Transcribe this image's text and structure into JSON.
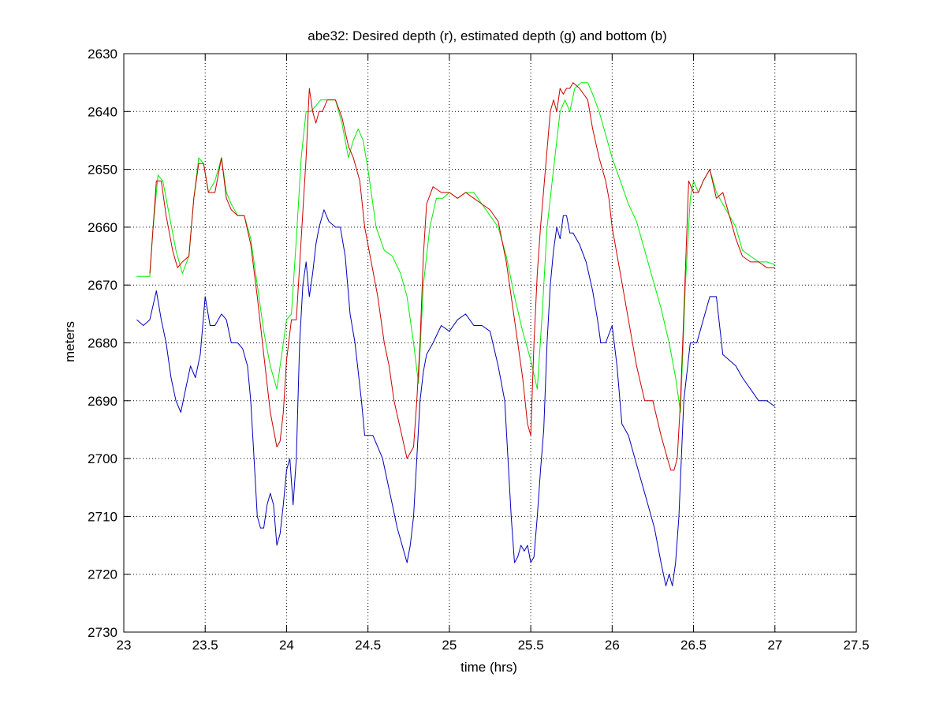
{
  "chart_data": {
    "type": "line",
    "title": "abe32: Desired depth (r), estimated depth (g) and bottom (b)",
    "xlabel": "time (hrs)",
    "ylabel": "meters",
    "xlim": [
      23,
      27.5
    ],
    "ylim": [
      2630,
      2730
    ],
    "y_reversed": true,
    "xticks": [
      "23",
      "23.5",
      "24",
      "24.5",
      "25",
      "25.5",
      "26",
      "26.5",
      "27",
      "27.5"
    ],
    "yticks": [
      "2630",
      "2640",
      "2650",
      "2660",
      "2670",
      "2680",
      "2690",
      "2700",
      "2710",
      "2720",
      "2730"
    ],
    "grid": true,
    "series": [
      {
        "color": "#00ee00",
        "x": [
          23.08,
          23.16,
          23.18,
          23.21,
          23.24,
          23.28,
          23.32,
          23.36,
          23.4,
          23.43,
          23.46,
          23.49,
          23.52,
          23.56,
          23.6,
          23.63,
          23.66,
          23.7,
          23.74,
          23.78,
          23.82,
          23.86,
          23.9,
          23.94,
          23.97,
          24.0,
          24.03,
          24.06,
          24.09,
          24.12,
          24.15,
          24.18,
          24.21,
          24.25,
          24.3,
          24.34,
          24.38,
          24.41,
          24.44,
          24.47,
          24.5,
          24.55,
          24.6,
          24.65,
          24.7,
          24.74,
          24.78,
          24.81,
          24.84,
          24.88,
          24.92,
          24.96,
          25.0,
          25.05,
          25.1,
          25.15,
          25.2,
          25.25,
          25.3,
          25.35,
          25.4,
          25.45,
          25.5,
          25.54,
          25.57,
          25.6,
          25.64,
          25.68,
          25.71,
          25.74,
          25.77,
          25.81,
          25.85,
          25.88,
          25.92,
          25.96,
          26.0,
          26.05,
          26.1,
          26.15,
          26.2,
          26.25,
          26.3,
          26.35,
          26.39,
          26.42,
          26.45,
          26.48,
          26.5,
          26.53,
          26.56,
          26.6,
          26.64,
          26.68,
          26.72,
          26.76,
          26.8,
          26.85,
          26.9,
          26.95,
          27.0
        ],
        "y": [
          2668.5,
          2668.5,
          2660,
          2651,
          2652,
          2658,
          2664,
          2668,
          2665,
          2655,
          2648,
          2649,
          2654,
          2652,
          2648,
          2654,
          2656,
          2658,
          2658,
          2662,
          2670,
          2678,
          2684,
          2688,
          2682,
          2676,
          2675,
          2662,
          2648,
          2640,
          2640,
          2639,
          2638,
          2638,
          2638,
          2642,
          2648,
          2645,
          2643,
          2645,
          2650,
          2660,
          2664,
          2665,
          2668,
          2672,
          2680,
          2687,
          2670,
          2660,
          2655,
          2655,
          2654,
          2655,
          2654,
          2654,
          2656,
          2658,
          2660,
          2665,
          2672,
          2678,
          2683,
          2688,
          2675,
          2660,
          2650,
          2640,
          2638,
          2640,
          2636,
          2635,
          2635,
          2637,
          2640,
          2644,
          2648,
          2652,
          2656,
          2659,
          2664,
          2669,
          2674,
          2680,
          2686,
          2692,
          2670,
          2655,
          2652,
          2654,
          2652,
          2650,
          2654,
          2656,
          2658,
          2660,
          2664,
          2665,
          2666,
          2666,
          2666.5
        ]
      },
      {
        "color": "#cc0000",
        "x": [
          23.16,
          23.18,
          23.2,
          23.23,
          23.26,
          23.3,
          23.33,
          23.36,
          23.4,
          23.43,
          23.46,
          23.49,
          23.52,
          23.56,
          23.6,
          23.63,
          23.66,
          23.7,
          23.74,
          23.78,
          23.82,
          23.86,
          23.9,
          23.94,
          23.96,
          23.98,
          24.0,
          24.03,
          24.06,
          24.09,
          24.12,
          24.14,
          24.16,
          24.18,
          24.2,
          24.22,
          24.25,
          24.3,
          24.34,
          24.38,
          24.41,
          24.43,
          24.45,
          24.48,
          24.52,
          24.56,
          24.6,
          24.63,
          24.66,
          24.7,
          24.74,
          24.78,
          24.8,
          24.82,
          24.84,
          24.86,
          24.9,
          24.95,
          25.0,
          25.05,
          25.1,
          25.15,
          25.2,
          25.25,
          25.3,
          25.35,
          25.4,
          25.45,
          25.48,
          25.5,
          25.52,
          25.54,
          25.56,
          25.59,
          25.62,
          25.64,
          25.66,
          25.68,
          25.7,
          25.72,
          25.74,
          25.76,
          25.8,
          25.85,
          25.88,
          25.92,
          25.96,
          25.98,
          26.0,
          26.05,
          26.1,
          26.15,
          26.2,
          26.25,
          26.3,
          26.34,
          26.36,
          26.38,
          26.4,
          26.42,
          26.44,
          26.47,
          26.5,
          26.53,
          26.56,
          26.6,
          26.64,
          26.68,
          26.72,
          26.76,
          26.8,
          26.85,
          26.9,
          26.95,
          27.0
        ],
        "y": [
          2668,
          2660,
          2652,
          2652,
          2658,
          2664,
          2667,
          2666,
          2665,
          2655,
          2649,
          2649,
          2654,
          2654,
          2648,
          2655,
          2657,
          2658,
          2658,
          2663,
          2672,
          2682,
          2692,
          2698,
          2697,
          2692,
          2683,
          2676,
          2676,
          2662,
          2648,
          2636,
          2640,
          2642,
          2640,
          2640,
          2638,
          2638,
          2641,
          2646,
          2648,
          2650,
          2652,
          2660,
          2666,
          2672,
          2680,
          2684,
          2690,
          2695,
          2700,
          2698,
          2690,
          2680,
          2665,
          2656,
          2653,
          2654,
          2654,
          2655,
          2654,
          2655,
          2656,
          2657,
          2659,
          2666,
          2676,
          2686,
          2694,
          2696,
          2680,
          2668,
          2660,
          2650,
          2640,
          2638,
          2640,
          2636,
          2637,
          2636,
          2636,
          2635,
          2636,
          2638,
          2643,
          2648,
          2652,
          2655,
          2660,
          2668,
          2676,
          2684,
          2690,
          2690,
          2696,
          2700,
          2702,
          2702,
          2700,
          2690,
          2675,
          2652,
          2654,
          2654,
          2652,
          2650,
          2655,
          2654,
          2658,
          2662,
          2665,
          2666,
          2666,
          2667,
          2667
        ]
      },
      {
        "color": "#0000bb",
        "x": [
          23.08,
          23.12,
          23.16,
          23.2,
          23.23,
          23.26,
          23.29,
          23.32,
          23.35,
          23.38,
          23.41,
          23.44,
          23.47,
          23.5,
          23.53,
          23.56,
          23.6,
          23.63,
          23.66,
          23.7,
          23.73,
          23.76,
          23.78,
          23.8,
          23.82,
          23.84,
          23.86,
          23.88,
          23.9,
          23.92,
          23.94,
          23.96,
          23.98,
          24.0,
          24.02,
          24.04,
          24.06,
          24.08,
          24.1,
          24.12,
          24.14,
          24.16,
          24.18,
          24.2,
          24.23,
          24.26,
          24.3,
          24.33,
          24.36,
          24.39,
          24.42,
          24.44,
          24.46,
          24.48,
          24.5,
          24.53,
          24.56,
          24.59,
          24.62,
          24.65,
          24.68,
          24.71,
          24.74,
          24.76,
          24.78,
          24.8,
          24.82,
          24.84,
          24.86,
          24.9,
          24.95,
          25.0,
          25.05,
          25.1,
          25.15,
          25.2,
          25.25,
          25.3,
          25.34,
          25.36,
          25.38,
          25.4,
          25.42,
          25.44,
          25.46,
          25.48,
          25.5,
          25.52,
          25.54,
          25.56,
          25.58,
          25.6,
          25.62,
          25.64,
          25.66,
          25.68,
          25.7,
          25.72,
          25.74,
          25.76,
          25.8,
          25.84,
          25.88,
          25.91,
          25.93,
          25.96,
          26.0,
          26.03,
          26.06,
          26.1,
          26.14,
          26.18,
          26.22,
          26.26,
          26.3,
          26.33,
          26.35,
          26.37,
          26.39,
          26.41,
          26.44,
          26.48,
          26.52,
          26.56,
          26.6,
          26.64,
          26.68,
          26.72,
          26.76,
          26.8,
          26.85,
          26.9,
          26.95,
          27.0
        ],
        "y": [
          2676,
          2677,
          2676,
          2671,
          2676,
          2680,
          2686,
          2690,
          2692,
          2688,
          2684,
          2686,
          2682,
          2672,
          2677,
          2677,
          2675,
          2676,
          2680,
          2680,
          2681,
          2684,
          2690,
          2700,
          2710,
          2712,
          2712,
          2708,
          2706,
          2708,
          2715,
          2713,
          2708,
          2702,
          2700,
          2708,
          2700,
          2680,
          2670,
          2666,
          2672,
          2668,
          2663,
          2660,
          2657,
          2659,
          2660,
          2660,
          2665,
          2675,
          2680,
          2685,
          2690,
          2696,
          2696,
          2696,
          2698,
          2700,
          2704,
          2708,
          2712,
          2715,
          2718,
          2715,
          2710,
          2700,
          2690,
          2685,
          2682,
          2680,
          2677,
          2678,
          2676,
          2675,
          2677,
          2677,
          2678,
          2684,
          2690,
          2700,
          2710,
          2718,
          2717,
          2715,
          2716,
          2715,
          2718,
          2717,
          2710,
          2702,
          2695,
          2680,
          2670,
          2664,
          2660,
          2662,
          2658,
          2658,
          2661,
          2661,
          2663,
          2666,
          2671,
          2676,
          2680,
          2680,
          2677,
          2684,
          2694,
          2696,
          2700,
          2704,
          2708,
          2712,
          2718,
          2722,
          2720,
          2722,
          2718,
          2710,
          2690,
          2680,
          2680,
          2676,
          2672,
          2672,
          2682,
          2683,
          2684,
          2686,
          2688,
          2690,
          2690,
          2691
        ]
      }
    ]
  }
}
